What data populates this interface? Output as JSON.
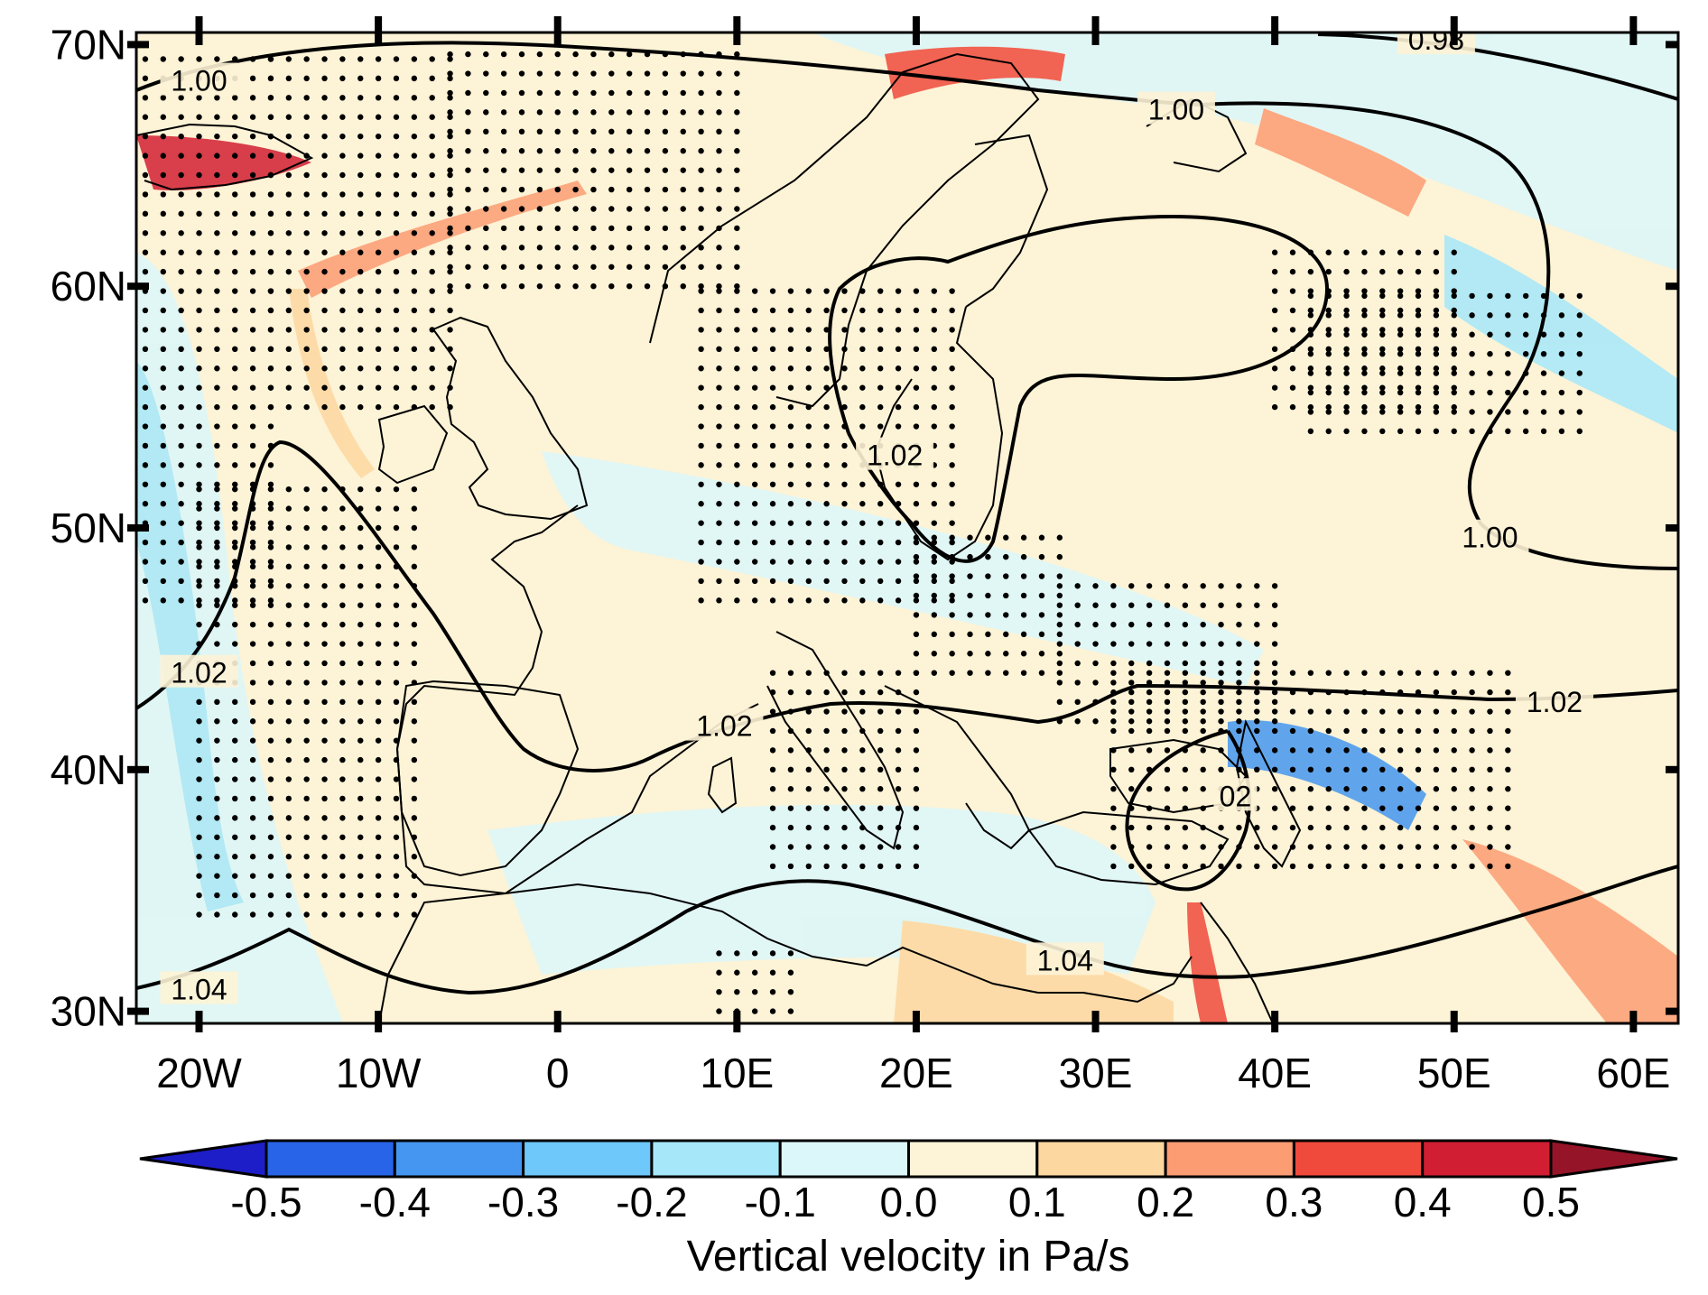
{
  "map": {
    "region": {
      "lon_min": -23.5,
      "lon_max": 62.5,
      "lat_min": 29.5,
      "lat_max": 70.5
    },
    "lat_ticks": [
      {
        "value": 70,
        "label": "70N"
      },
      {
        "value": 60,
        "label": "60N"
      },
      {
        "value": 50,
        "label": "50N"
      },
      {
        "value": 40,
        "label": "40N"
      },
      {
        "value": 30,
        "label": "30N"
      }
    ],
    "lon_ticks": [
      {
        "value": -20,
        "label": "20W"
      },
      {
        "value": -10,
        "label": "10W"
      },
      {
        "value": 0,
        "label": "0"
      },
      {
        "value": 10,
        "label": "10E"
      },
      {
        "value": 20,
        "label": "20E"
      },
      {
        "value": 30,
        "label": "30E"
      },
      {
        "value": 40,
        "label": "40E"
      },
      {
        "value": 50,
        "label": "50E"
      },
      {
        "value": 60,
        "label": "60E"
      }
    ],
    "field": "Vertical velocity in Pa/s",
    "background_color": "#fdf3d6",
    "overlay": "black contour lines with labels; stippling marks significant areas",
    "contours": [
      {
        "label": "0.98",
        "label_lon": 49,
        "label_lat": 70.2
      },
      {
        "label": "1.00",
        "label_lon": -20,
        "label_lat": 68.5
      },
      {
        "label": "1.00",
        "label_lon": 34.5,
        "label_lat": 67.3
      },
      {
        "label": "1.00",
        "label_lon": 52,
        "label_lat": 49.6
      },
      {
        "label": "1.02",
        "label_lon": 18.8,
        "label_lat": 53.0
      },
      {
        "label": "1.02",
        "label_lon": -20,
        "label_lat": 44.0
      },
      {
        "label": "1.02",
        "label_lon": 9.3,
        "label_lat": 41.8
      },
      {
        "label": "1.02",
        "label_lon": 55.6,
        "label_lat": 42.8
      },
      {
        "label": "02",
        "label_lon": 37.8,
        "label_lat": 38.9
      },
      {
        "label": "1.04",
        "label_lon": -20,
        "label_lat": 30.9
      },
      {
        "label": "1.04",
        "label_lon": 28.3,
        "label_lat": 32.1
      }
    ]
  },
  "colorbar": {
    "title": "Vertical velocity in Pa/s",
    "extend": "both",
    "levels": [
      "-0.5",
      "-0.4",
      "-0.3",
      "-0.2",
      "-0.1",
      "0.0",
      "0.1",
      "0.2",
      "0.3",
      "0.4",
      "0.5"
    ],
    "colors": [
      "#1e1ec8",
      "#2864e8",
      "#4496f0",
      "#6ec8fa",
      "#a6e8fa",
      "#dcf7fa",
      "#fdf3d6",
      "#fdd7a0",
      "#fc9c73",
      "#f04a3c",
      "#d21e32",
      "#961428"
    ]
  }
}
